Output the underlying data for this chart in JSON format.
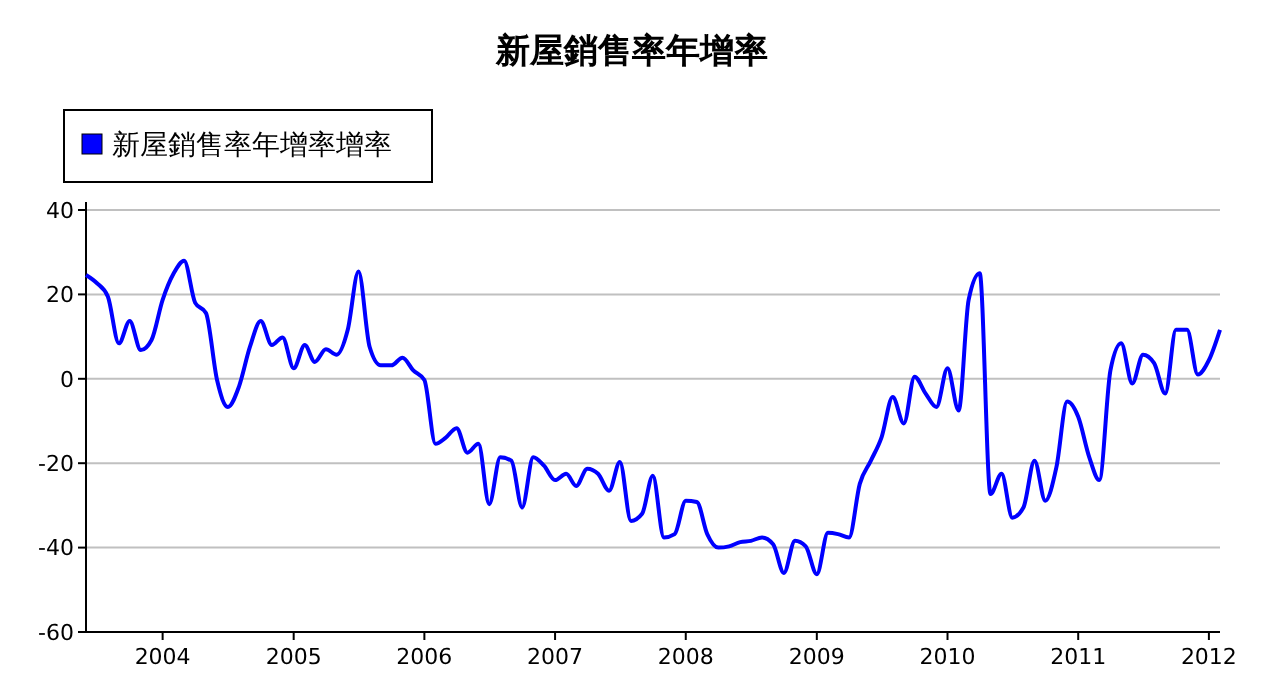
{
  "chart_data": {
    "type": "line",
    "title": "新屋銷售率年增率",
    "legend": "top left",
    "grid": "y",
    "line_style": "solid",
    "marker": "none",
    "x": [
      "2003-06",
      "2003-07",
      "2003-08",
      "2003-09",
      "2003-10",
      "2003-11",
      "2003-12",
      "2004-01",
      "2004-02",
      "2004-03",
      "2004-04",
      "2004-05",
      "2004-06",
      "2004-07",
      "2004-08",
      "2004-09",
      "2004-10",
      "2004-11",
      "2004-12",
      "2005-01",
      "2005-02",
      "2005-03",
      "2005-04",
      "2005-05",
      "2005-06",
      "2005-07",
      "2005-08",
      "2005-09",
      "2005-10",
      "2005-11",
      "2005-12",
      "2006-01",
      "2006-02",
      "2006-03",
      "2006-04",
      "2006-05",
      "2006-06",
      "2006-07",
      "2006-08",
      "2006-09",
      "2006-10",
      "2006-11",
      "2006-12",
      "2007-01",
      "2007-02",
      "2007-03",
      "2007-04",
      "2007-05",
      "2007-06",
      "2007-07",
      "2007-08",
      "2007-09",
      "2007-10",
      "2007-11",
      "2007-12",
      "2008-01",
      "2008-02",
      "2008-03",
      "2008-04",
      "2008-05",
      "2008-06",
      "2008-07",
      "2008-08",
      "2008-09",
      "2008-10",
      "2008-11",
      "2008-12",
      "2009-01",
      "2009-02",
      "2009-03",
      "2009-04",
      "2009-05",
      "2009-06",
      "2009-07",
      "2009-08",
      "2009-09",
      "2009-10",
      "2009-11",
      "2009-12",
      "2010-01",
      "2010-02",
      "2010-03",
      "2010-04",
      "2010-05",
      "2010-06",
      "2010-07",
      "2010-08",
      "2010-09",
      "2010-10",
      "2010-11",
      "2010-12",
      "2011-01",
      "2011-02",
      "2011-03",
      "2011-04",
      "2011-05",
      "2011-06",
      "2011-07",
      "2011-08",
      "2011-09",
      "2011-10",
      "2011-11",
      "2011-12",
      "2012-01",
      "2012-02"
    ],
    "series": [
      {
        "name": "新屋銷售率年增率增率",
        "color": "#0000ff",
        "values": [
          24.6,
          22.7,
          19.5,
          8.4,
          13.7,
          6.8,
          9.2,
          18.7,
          25,
          28,
          18,
          15.6,
          -0.3,
          -6.7,
          -1.9,
          7.6,
          13.7,
          8,
          9.8,
          2.5,
          8,
          4,
          7,
          5.7,
          11.6,
          25.4,
          7.6,
          3.2,
          3.2,
          5,
          2,
          -0.3,
          -15.4,
          -14,
          -11.7,
          -17.5,
          -15.4,
          -29.7,
          -18.6,
          -19.4,
          -30.5,
          -18.6,
          -20.6,
          -24,
          -22.5,
          -25.4,
          -21.3,
          -22.5,
          -26.5,
          -19.7,
          -33.7,
          -32,
          -23,
          -37.6,
          -36.8,
          -28.9,
          -29.2,
          -36.8,
          -40,
          -39.7,
          -38.7,
          -38.4,
          -37.6,
          -39.2,
          -46,
          -38.4,
          -39.7,
          -46.3,
          -36.5,
          -36.8,
          -37.6,
          -24.9,
          -19.4,
          -13.8,
          -4.3,
          -10.6,
          0.5,
          -3.5,
          -6.7,
          2.5,
          -7.5,
          18.7,
          25,
          -27.3,
          -22.5,
          -32.9,
          -30.5,
          -19.4,
          -28.9,
          -21,
          -5.4,
          -9,
          -18.6,
          -24,
          2,
          8.4,
          -1.1,
          5.7,
          3.7,
          -3.5,
          11.6,
          11.6,
          1,
          4.4,
          11.6
        ]
      }
    ],
    "xlim": [
      "2003-06",
      "2012-02"
    ],
    "xticks": [
      {
        "value": "2004",
        "label": "2004"
      },
      {
        "value": "2005",
        "label": "2005"
      },
      {
        "value": "2006",
        "label": "2006"
      },
      {
        "value": "2007",
        "label": "2007"
      },
      {
        "value": "2008",
        "label": "2008"
      },
      {
        "value": "2009",
        "label": "2009"
      },
      {
        "value": "2010",
        "label": "2010"
      },
      {
        "value": "2011",
        "label": "2011"
      },
      {
        "value": "2012",
        "label": "2012"
      }
    ],
    "ylim": [
      -60,
      40
    ],
    "yticks": [
      -60,
      -40,
      -20,
      0,
      20,
      40
    ]
  }
}
